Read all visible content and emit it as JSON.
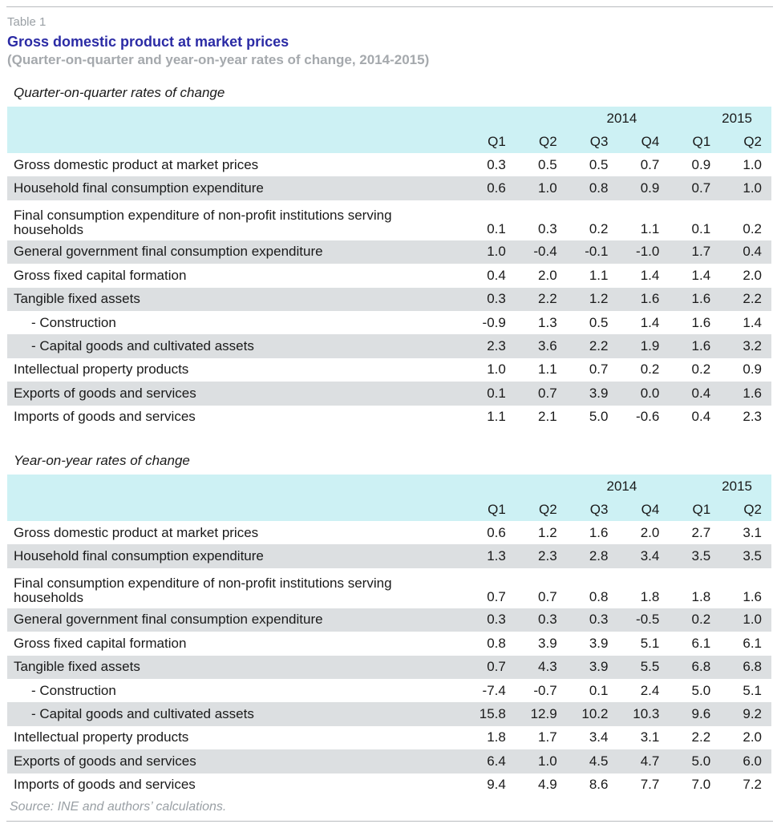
{
  "header": {
    "table_label": "Table 1",
    "title": "Gross domestic product at market prices",
    "subtitle": "(Quarter-on-quarter and year-on-year rates of change, 2014-2015)"
  },
  "colors": {
    "title": "#2b2ba5",
    "header_band": "#cdf1f4",
    "row_shade": "#dcdfe1",
    "muted_text": "#9aa0a5"
  },
  "columns": {
    "year_2014": "2014",
    "year_2015": "2015",
    "quarters": [
      "Q1",
      "Q2",
      "Q3",
      "Q4",
      "Q1",
      "Q2"
    ]
  },
  "sections": [
    {
      "title": "Quarter-on-quarter rates of change",
      "rows": [
        {
          "label": "Gross domestic product at market prices",
          "values": [
            "0.3",
            "0.5",
            "0.5",
            "0.7",
            "0.9",
            "1.0"
          ]
        },
        {
          "label": "Household final consumption expenditure",
          "values": [
            "0.6",
            "1.0",
            "0.8",
            "0.9",
            "0.7",
            "1.0"
          ]
        },
        {
          "label": "Final consumption expenditure of non-profit institutions serving households",
          "values": [
            "0.1",
            "0.3",
            "0.2",
            "1.1",
            "0.1",
            "0.2"
          ]
        },
        {
          "label": "General government final consumption expenditure",
          "values": [
            "1.0",
            "-0.4",
            "-0.1",
            "-1.0",
            "1.7",
            "0.4"
          ]
        },
        {
          "label": "Gross fixed capital formation",
          "values": [
            "0.4",
            "2.0",
            "1.1",
            "1.4",
            "1.4",
            "2.0"
          ]
        },
        {
          "label": "Tangible fixed assets",
          "values": [
            "0.3",
            "2.2",
            "1.2",
            "1.6",
            "1.6",
            "2.2"
          ]
        },
        {
          "label": "- Construction",
          "values": [
            "-0.9",
            "1.3",
            "0.5",
            "1.4",
            "1.6",
            "1.4"
          ]
        },
        {
          "label": "- Capital goods and cultivated assets",
          "values": [
            "2.3",
            "3.6",
            "2.2",
            "1.9",
            "1.6",
            "3.2"
          ]
        },
        {
          "label": "Intellectual property products",
          "values": [
            "1.0",
            "1.1",
            "0.7",
            "0.2",
            "0.2",
            "0.9"
          ]
        },
        {
          "label": "Exports of goods and services",
          "values": [
            "0.1",
            "0.7",
            "3.9",
            "0.0",
            "0.4",
            "1.6"
          ]
        },
        {
          "label": "Imports of goods and services",
          "values": [
            "1.1",
            "2.1",
            "5.0",
            "-0.6",
            "0.4",
            "2.3"
          ]
        }
      ]
    },
    {
      "title": "Year-on-year rates of change",
      "rows": [
        {
          "label": "Gross domestic product at market prices",
          "values": [
            "0.6",
            "1.2",
            "1.6",
            "2.0",
            "2.7",
            "3.1"
          ]
        },
        {
          "label": "Household final consumption expenditure",
          "values": [
            "1.3",
            "2.3",
            "2.8",
            "3.4",
            "3.5",
            "3.5"
          ]
        },
        {
          "label": "Final consumption expenditure of non-profit institutions serving households",
          "values": [
            "0.7",
            "0.7",
            "0.8",
            "1.8",
            "1.8",
            "1.6"
          ]
        },
        {
          "label": "General government final consumption expenditure",
          "values": [
            "0.3",
            "0.3",
            "0.3",
            "-0.5",
            "0.2",
            "1.0"
          ]
        },
        {
          "label": "Gross fixed capital formation",
          "values": [
            "0.8",
            "3.9",
            "3.9",
            "5.1",
            "6.1",
            "6.1"
          ]
        },
        {
          "label": "Tangible fixed assets",
          "values": [
            "0.7",
            "4.3",
            "3.9",
            "5.5",
            "6.8",
            "6.8"
          ]
        },
        {
          "label": "- Construction",
          "values": [
            "-7.4",
            "-0.7",
            "0.1",
            "2.4",
            "5.0",
            "5.1"
          ]
        },
        {
          "label": "- Capital goods and cultivated assets",
          "values": [
            "15.8",
            "12.9",
            "10.2",
            "10.3",
            "9.6",
            "9.2"
          ]
        },
        {
          "label": "Intellectual property products",
          "values": [
            "1.8",
            "1.7",
            "3.4",
            "3.1",
            "2.2",
            "2.0"
          ]
        },
        {
          "label": "Exports of goods and services",
          "values": [
            "6.4",
            "1.0",
            "4.5",
            "4.7",
            "5.0",
            "6.0"
          ]
        },
        {
          "label": "Imports of goods and services",
          "values": [
            "9.4",
            "4.9",
            "8.6",
            "7.7",
            "7.0",
            "7.2"
          ]
        }
      ]
    }
  ],
  "source": "Source: INE and authors’ calculations."
}
